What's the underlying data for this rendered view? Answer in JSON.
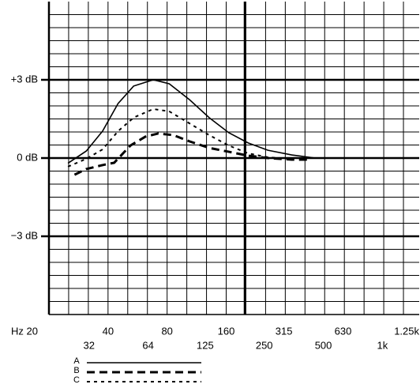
{
  "chart_data": {
    "type": "line",
    "xscale": "log",
    "xlim": [
      20,
      1540
    ],
    "ylim": [
      -6,
      6
    ],
    "xticks": [
      {
        "value": 20,
        "label": "Hz 20"
      },
      32,
      40,
      64,
      80,
      125,
      160,
      250,
      315,
      500,
      630,
      {
        "value": 1000,
        "label": "1k"
      },
      {
        "value": 1250,
        "label": "1.25k"
      }
    ],
    "yticks": [
      {
        "value": 3,
        "label": "+3 dB"
      },
      {
        "value": 0,
        "label": "0 dB"
      },
      {
        "value": -3,
        "label": "−3 dB"
      }
    ],
    "grid": true,
    "series": [
      {
        "name": "A",
        "color": "#000000",
        "x": [
          25,
          31,
          37.5,
          45,
          54,
          68,
          82,
          104,
          131,
          165,
          207,
          261,
          345,
          455
        ],
        "values": [
          -0.2,
          0.27,
          1.03,
          2.09,
          2.76,
          3.0,
          2.85,
          2.24,
          1.55,
          0.97,
          0.58,
          0.3,
          0.12,
          0
        ]
      },
      {
        "name": "B",
        "color": "#000000",
        "x": [
          27,
          31,
          37.5,
          43,
          52,
          62,
          72,
          86,
          104,
          131,
          165,
          207,
          261,
          345,
          434
        ],
        "values": [
          -0.64,
          -0.42,
          -0.27,
          -0.18,
          0.48,
          0.82,
          0.94,
          0.88,
          0.64,
          0.39,
          0.24,
          0.09,
          0,
          -0.06,
          -0.06
        ]
      },
      {
        "name": "C",
        "color": "#000000",
        "x": [
          25,
          31,
          37.5,
          45,
          54,
          68,
          82,
          104,
          131,
          165,
          207,
          261,
          345
        ],
        "values": [
          -0.33,
          -0.03,
          0.33,
          1.03,
          1.55,
          1.88,
          1.79,
          1.33,
          0.88,
          0.48,
          0.18,
          0.03,
          -0.03
        ]
      }
    ]
  }
}
